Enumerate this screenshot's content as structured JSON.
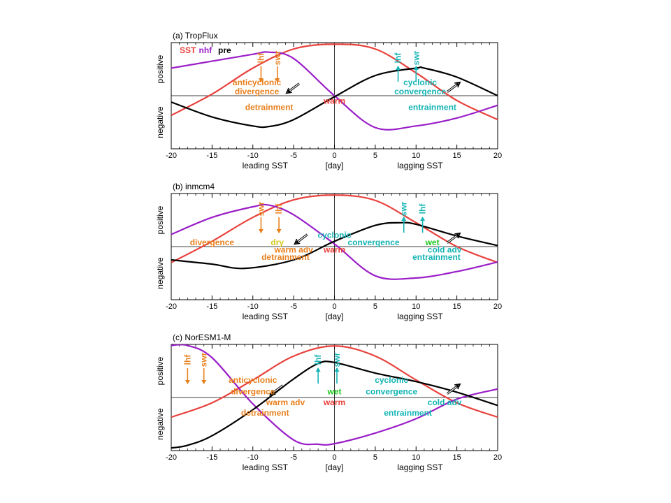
{
  "colors": {
    "sst": "#e8413c",
    "nhf": "#9a1ec8",
    "pre": "#000000",
    "orange": "#e8801e",
    "cyan": "#14b4b4",
    "green": "#1ec81e",
    "yellow": "#d2c81e",
    "red": "#e8413c"
  },
  "legend": [
    {
      "label": "SST",
      "color": "sst"
    },
    {
      "label": "nhf",
      "color": "nhf"
    },
    {
      "label": "pre",
      "color": "pre"
    }
  ],
  "chart_data": [
    {
      "type": "line",
      "title": "(a) TropFlux",
      "xlim": [
        -20,
        20
      ],
      "ylim": [
        -1,
        1
      ],
      "xticks": [
        -20,
        -15,
        -10,
        -5,
        0,
        5,
        10,
        15,
        20
      ],
      "xticklabels": [
        "-20",
        "-15",
        "-10",
        "-5",
        "0",
        "5",
        "10",
        "15",
        "20"
      ],
      "xlabel_left": "leading SST",
      "xlabel_center": "[day]",
      "xlabel_right": "lagging SST",
      "ylabel_pos": "positive",
      "ylabel_neg": "negative",
      "series": [
        {
          "key": "sst",
          "x": [
            -20,
            -15,
            -10,
            -5,
            0,
            5,
            10,
            15,
            20
          ],
          "y": [
            -0.37,
            0.03,
            0.52,
            0.88,
            0.97,
            0.88,
            0.43,
            -0.09,
            -0.45
          ]
        },
        {
          "key": "nhf",
          "x": [
            -20,
            -15,
            -10,
            -8,
            -5,
            0,
            5,
            10,
            15,
            20
          ],
          "y": [
            0.52,
            0.65,
            0.78,
            0.82,
            0.7,
            0.0,
            -0.6,
            -0.57,
            -0.42,
            -0.18
          ]
        },
        {
          "key": "pre",
          "x": [
            -20,
            -15,
            -10,
            -8,
            -5,
            0,
            5,
            10,
            11,
            15,
            20
          ],
          "y": [
            -0.12,
            -0.4,
            -0.57,
            -0.58,
            -0.45,
            -0.02,
            0.38,
            0.52,
            0.52,
            0.35,
            0.0
          ]
        }
      ],
      "annotations": [
        {
          "text": "anticyclonic",
          "x": -9.5,
          "y": 0.25,
          "color": "orange"
        },
        {
          "text": "divergence",
          "x": -9.5,
          "y": 0.08,
          "color": "orange"
        },
        {
          "text": "detrainment",
          "x": -8,
          "y": -0.22,
          "color": "orange"
        },
        {
          "text": "warm",
          "x": 0,
          "y": -0.1,
          "color": "red"
        },
        {
          "text": "cyclonic",
          "x": 10.5,
          "y": 0.25,
          "color": "cyan"
        },
        {
          "text": "convergence",
          "x": 10.5,
          "y": 0.08,
          "color": "cyan"
        },
        {
          "text": "entrainment",
          "x": 12,
          "y": -0.22,
          "color": "cyan"
        }
      ],
      "flux_arrows": [
        {
          "label": "lhf",
          "x": -9,
          "dir": "down",
          "color": "orange"
        },
        {
          "label": "swr",
          "x": -7,
          "dir": "down",
          "color": "orange"
        },
        {
          "label": "lhf",
          "x": 7.8,
          "dir": "up",
          "color": "cyan"
        },
        {
          "label": "swr",
          "x": 10,
          "dir": "up",
          "color": "cyan"
        }
      ],
      "wind_arrows": [
        {
          "x": -5,
          "y": 0.15,
          "dir": "sw"
        },
        {
          "x": 14.5,
          "y": 0.15,
          "dir": "ne"
        }
      ]
    },
    {
      "type": "line",
      "title": "(b) inmcm4",
      "xlim": [
        -20,
        20
      ],
      "ylim": [
        -1,
        1
      ],
      "xticks": [
        -20,
        -15,
        -10,
        -5,
        0,
        5,
        10,
        15,
        20
      ],
      "xticklabels": [
        "-20",
        "-15",
        "-10",
        "-5",
        "0",
        "5",
        "10",
        "15",
        "20"
      ],
      "xlabel_left": "leading SST",
      "xlabel_center": "[day]",
      "xlabel_right": "lagging SST",
      "ylabel_pos": "positive",
      "ylabel_neg": "negative",
      "series": [
        {
          "key": "sst",
          "x": [
            -20,
            -15,
            -10,
            -5,
            0,
            5,
            10,
            15,
            20
          ],
          "y": [
            -0.3,
            0.1,
            0.55,
            0.88,
            0.97,
            0.87,
            0.45,
            0.0,
            -0.3
          ]
        },
        {
          "key": "nhf",
          "x": [
            -20,
            -15,
            -10,
            -8,
            -5,
            0,
            5,
            10,
            15,
            20
          ],
          "y": [
            0.23,
            0.55,
            0.75,
            0.78,
            0.6,
            0.05,
            -0.55,
            -0.59,
            -0.47,
            -0.29
          ]
        },
        {
          "key": "pre",
          "x": [
            -20,
            -15,
            -11,
            -5,
            0,
            5,
            8,
            10,
            15,
            20
          ],
          "y": [
            -0.25,
            -0.33,
            -0.41,
            -0.25,
            0.1,
            0.4,
            0.45,
            0.42,
            0.2,
            0.02
          ]
        }
      ],
      "annotations": [
        {
          "text": "divergence",
          "x": -15,
          "y": 0.08,
          "color": "orange"
        },
        {
          "text": "dry",
          "x": -7,
          "y": 0.08,
          "color": "yellow"
        },
        {
          "text": "warm adv",
          "x": -5,
          "y": -0.06,
          "color": "orange"
        },
        {
          "text": "detrainment",
          "x": -6,
          "y": -0.2,
          "color": "orange"
        },
        {
          "text": "cyclonic",
          "x": 0,
          "y": 0.22,
          "color": "cyan"
        },
        {
          "text": "warm",
          "x": 0,
          "y": -0.06,
          "color": "red"
        },
        {
          "text": "convergence",
          "x": 4.8,
          "y": 0.08,
          "color": "cyan"
        },
        {
          "text": "wet",
          "x": 12,
          "y": 0.08,
          "color": "green"
        },
        {
          "text": "cold adv",
          "x": 13.5,
          "y": -0.06,
          "color": "cyan"
        },
        {
          "text": "entrainment",
          "x": 12.5,
          "y": -0.2,
          "color": "cyan"
        }
      ],
      "flux_arrows": [
        {
          "label": "swr",
          "x": -9,
          "dir": "down",
          "color": "orange"
        },
        {
          "label": "lhf",
          "x": -6.8,
          "dir": "down",
          "color": "orange"
        },
        {
          "label": "swr",
          "x": 8.5,
          "dir": "up",
          "color": "cyan"
        },
        {
          "label": "lhf",
          "x": 10.8,
          "dir": "up",
          "color": "cyan"
        }
      ],
      "wind_arrows": [
        {
          "x": -4,
          "y": 0.15,
          "dir": "sw"
        },
        {
          "x": 14.5,
          "y": 0.15,
          "dir": "ne"
        }
      ]
    },
    {
      "type": "line",
      "title": "(c) NorESM1-M",
      "xlim": [
        -20,
        20
      ],
      "ylim": [
        -1,
        1
      ],
      "xticks": [
        -20,
        -15,
        -10,
        -5,
        0,
        5,
        10,
        15,
        20
      ],
      "xticklabels": [
        "-20",
        "-15",
        "-10",
        "-5",
        "0",
        "5",
        "10",
        "15",
        "20"
      ],
      "xlabel_left": "leading SST",
      "xlabel_center": "[day]",
      "xlabel_right": "lagging SST",
      "ylabel_pos": "positive",
      "ylabel_neg": "negative",
      "series": [
        {
          "key": "sst",
          "x": [
            -20,
            -15,
            -10,
            -5,
            0,
            5,
            10,
            15,
            20
          ],
          "y": [
            -0.37,
            -0.1,
            0.33,
            0.78,
            0.97,
            0.78,
            0.33,
            -0.1,
            -0.37
          ]
        },
        {
          "key": "nhf",
          "x": [
            -20,
            -18,
            -15,
            -10,
            -5,
            -2,
            0,
            5,
            10,
            15,
            20
          ],
          "y": [
            0.98,
            0.98,
            0.75,
            -0.12,
            -0.8,
            -0.88,
            -0.87,
            -0.67,
            -0.4,
            -0.03,
            0.16
          ]
        },
        {
          "key": "pre",
          "x": [
            -20,
            -18,
            -15,
            -10,
            -5,
            -2,
            0,
            5,
            10,
            15,
            20
          ],
          "y": [
            -0.95,
            -0.9,
            -0.72,
            -0.23,
            0.35,
            0.64,
            0.66,
            0.46,
            0.3,
            0.1,
            -0.15
          ]
        }
      ],
      "annotations": [
        {
          "text": "anticyclonic",
          "x": -10,
          "y": 0.33,
          "color": "orange"
        },
        {
          "text": "divergence",
          "x": -10,
          "y": 0.11,
          "color": "orange"
        },
        {
          "text": "warm adv",
          "x": -6,
          "y": -0.09,
          "color": "orange"
        },
        {
          "text": "detrainment",
          "x": -8.5,
          "y": -0.29,
          "color": "orange"
        },
        {
          "text": "wet",
          "x": 0,
          "y": 0.11,
          "color": "green"
        },
        {
          "text": "warm",
          "x": 0,
          "y": -0.09,
          "color": "red"
        },
        {
          "text": "cyclonic",
          "x": 7,
          "y": 0.33,
          "color": "cyan"
        },
        {
          "text": "convergence",
          "x": 7,
          "y": 0.11,
          "color": "cyan"
        },
        {
          "text": "cold adv",
          "x": 13.5,
          "y": -0.09,
          "color": "cyan"
        },
        {
          "text": "entrainment",
          "x": 9,
          "y": -0.29,
          "color": "cyan"
        }
      ],
      "flux_arrows": [
        {
          "label": "lhf",
          "x": -18,
          "dir": "down",
          "color": "orange"
        },
        {
          "label": "swr",
          "x": -16,
          "dir": "down",
          "color": "orange"
        },
        {
          "label": "lhf",
          "x": -2,
          "dir": "up",
          "color": "cyan"
        },
        {
          "label": "swr",
          "x": 0.3,
          "dir": "up",
          "color": "cyan"
        }
      ],
      "wind_arrows": [
        {
          "x": -7,
          "y": 0.15,
          "dir": "sw"
        },
        {
          "x": 14.5,
          "y": 0.15,
          "dir": "ne"
        }
      ]
    }
  ]
}
